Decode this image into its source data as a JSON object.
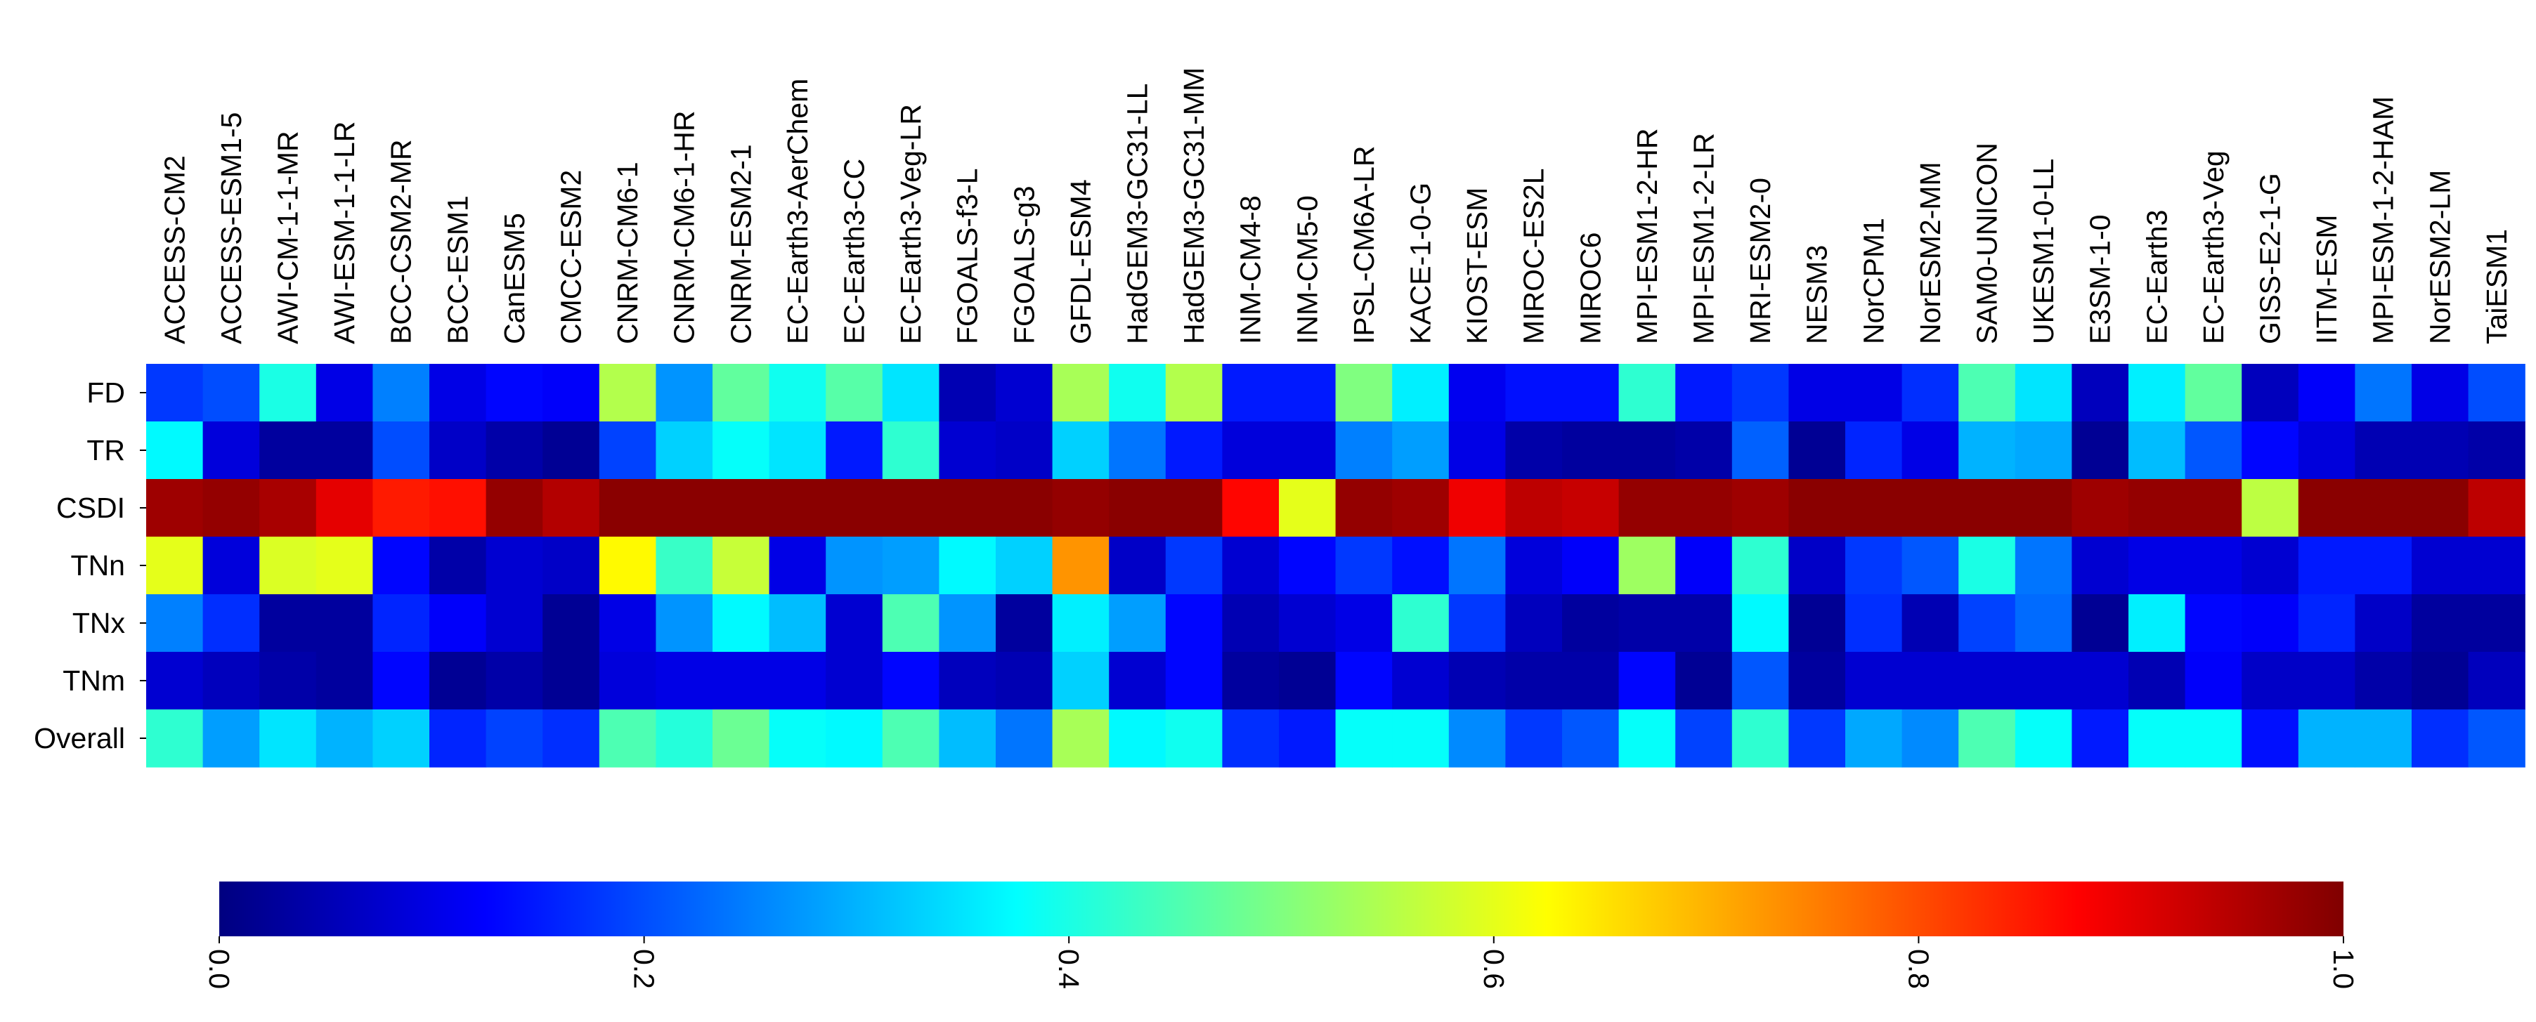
{
  "chart_data": {
    "type": "heatmap",
    "title": "",
    "xlabel": "",
    "ylabel": "",
    "colormap": "jet",
    "vmin": 0.0,
    "vmax": 1.0,
    "rows": [
      "FD",
      "TR",
      "CSDI",
      "TNn",
      "TNx",
      "TNm",
      "Overall"
    ],
    "columns": [
      "ACCESS-CM2",
      "ACCESS-ESM1-5",
      "AWI-CM-1-1-MR",
      "AWI-ESM-1-1-LR",
      "BCC-CSM2-MR",
      "BCC-ESM1",
      "CanESM5",
      "CMCC-ESM2",
      "CNRM-CM6-1",
      "CNRM-CM6-1-HR",
      "CNRM-ESM2-1",
      "EC-Earth3-AerChem",
      "EC-Earth3-CC",
      "EC-Earth3-Veg-LR",
      "FGOALS-f3-L",
      "FGOALS-g3",
      "GFDL-ESM4",
      "HadGEM3-GC31-LL",
      "HadGEM3-GC31-MM",
      "INM-CM4-8",
      "INM-CM5-0",
      "IPSL-CM6A-LR",
      "KACE-1-0-G",
      "KIOST-ESM",
      "MIROC-ES2L",
      "MIROC6",
      "MPI-ESM1-2-HR",
      "MPI-ESM1-2-LR",
      "MRI-ESM2-0",
      "NESM3",
      "NorCPM1",
      "NorESM2-MM",
      "SAM0-UNICON",
      "UKESM1-0-LL",
      "E3SM-1-0",
      "EC-Earth3",
      "EC-Earth3-Veg",
      "GISS-E2-1-G",
      "IITM-ESM",
      "MPI-ESM-1-2-HAM",
      "NorESM2-LM",
      "TaiESM1"
    ],
    "values": [
      [
        0.18,
        0.2,
        0.4,
        0.1,
        0.25,
        0.1,
        0.13,
        0.12,
        0.55,
        0.27,
        0.47,
        0.39,
        0.46,
        0.35,
        0.05,
        0.08,
        0.54,
        0.39,
        0.55,
        0.15,
        0.15,
        0.5,
        0.36,
        0.11,
        0.14,
        0.14,
        0.42,
        0.15,
        0.18,
        0.1,
        0.1,
        0.17,
        0.45,
        0.35,
        0.06,
        0.36,
        0.47,
        0.06,
        0.12,
        0.24,
        0.1,
        0.2
      ],
      [
        0.37,
        0.09,
        0.03,
        0.03,
        0.2,
        0.07,
        0.04,
        0.02,
        0.19,
        0.33,
        0.38,
        0.35,
        0.15,
        0.42,
        0.08,
        0.07,
        0.33,
        0.24,
        0.15,
        0.09,
        0.09,
        0.25,
        0.28,
        0.1,
        0.04,
        0.03,
        0.03,
        0.04,
        0.22,
        0.02,
        0.16,
        0.1,
        0.3,
        0.29,
        0.02,
        0.31,
        0.21,
        0.13,
        0.09,
        0.05,
        0.05,
        0.04
      ],
      [
        0.97,
        0.98,
        0.96,
        0.9,
        0.85,
        0.86,
        0.98,
        0.95,
        0.99,
        0.99,
        0.99,
        0.99,
        0.99,
        0.99,
        0.99,
        0.99,
        0.98,
        0.99,
        0.99,
        0.87,
        0.6,
        0.98,
        0.97,
        0.89,
        0.94,
        0.93,
        0.98,
        0.98,
        0.97,
        0.99,
        0.99,
        0.99,
        0.99,
        0.99,
        0.97,
        0.98,
        0.98,
        0.56,
        0.99,
        0.99,
        0.99,
        0.94
      ],
      [
        0.6,
        0.09,
        0.59,
        0.6,
        0.13,
        0.04,
        0.08,
        0.07,
        0.63,
        0.43,
        0.57,
        0.1,
        0.27,
        0.28,
        0.37,
        0.33,
        0.73,
        0.07,
        0.18,
        0.08,
        0.13,
        0.18,
        0.14,
        0.24,
        0.09,
        0.12,
        0.53,
        0.12,
        0.42,
        0.07,
        0.18,
        0.21,
        0.4,
        0.24,
        0.08,
        0.1,
        0.1,
        0.08,
        0.15,
        0.15,
        0.08,
        0.08
      ],
      [
        0.25,
        0.17,
        0.03,
        0.03,
        0.16,
        0.12,
        0.08,
        0.02,
        0.1,
        0.27,
        0.37,
        0.31,
        0.08,
        0.45,
        0.27,
        0.03,
        0.36,
        0.28,
        0.13,
        0.05,
        0.08,
        0.1,
        0.42,
        0.18,
        0.06,
        0.03,
        0.04,
        0.04,
        0.37,
        0.02,
        0.17,
        0.05,
        0.19,
        0.23,
        0.02,
        0.36,
        0.13,
        0.12,
        0.16,
        0.07,
        0.03,
        0.03
      ],
      [
        0.08,
        0.06,
        0.04,
        0.03,
        0.13,
        0.02,
        0.04,
        0.02,
        0.09,
        0.1,
        0.1,
        0.1,
        0.08,
        0.13,
        0.06,
        0.05,
        0.33,
        0.08,
        0.13,
        0.03,
        0.02,
        0.13,
        0.08,
        0.05,
        0.04,
        0.04,
        0.13,
        0.02,
        0.21,
        0.03,
        0.08,
        0.08,
        0.08,
        0.08,
        0.08,
        0.05,
        0.12,
        0.07,
        0.07,
        0.04,
        0.02,
        0.06
      ],
      [
        0.42,
        0.28,
        0.35,
        0.3,
        0.33,
        0.16,
        0.19,
        0.17,
        0.45,
        0.41,
        0.48,
        0.38,
        0.37,
        0.45,
        0.31,
        0.24,
        0.54,
        0.37,
        0.39,
        0.17,
        0.15,
        0.38,
        0.38,
        0.26,
        0.18,
        0.21,
        0.38,
        0.19,
        0.42,
        0.18,
        0.29,
        0.26,
        0.45,
        0.38,
        0.15,
        0.38,
        0.38,
        0.14,
        0.3,
        0.3,
        0.17,
        0.21
      ]
    ],
    "colorbar": {
      "ticks": [
        0.0,
        0.2,
        0.4,
        0.6,
        0.8,
        1.0
      ],
      "tick_labels": [
        "0.0",
        "0.2",
        "0.4",
        "0.6",
        "0.8",
        "1.0"
      ],
      "orientation": "horizontal",
      "placement": "bottom"
    }
  }
}
